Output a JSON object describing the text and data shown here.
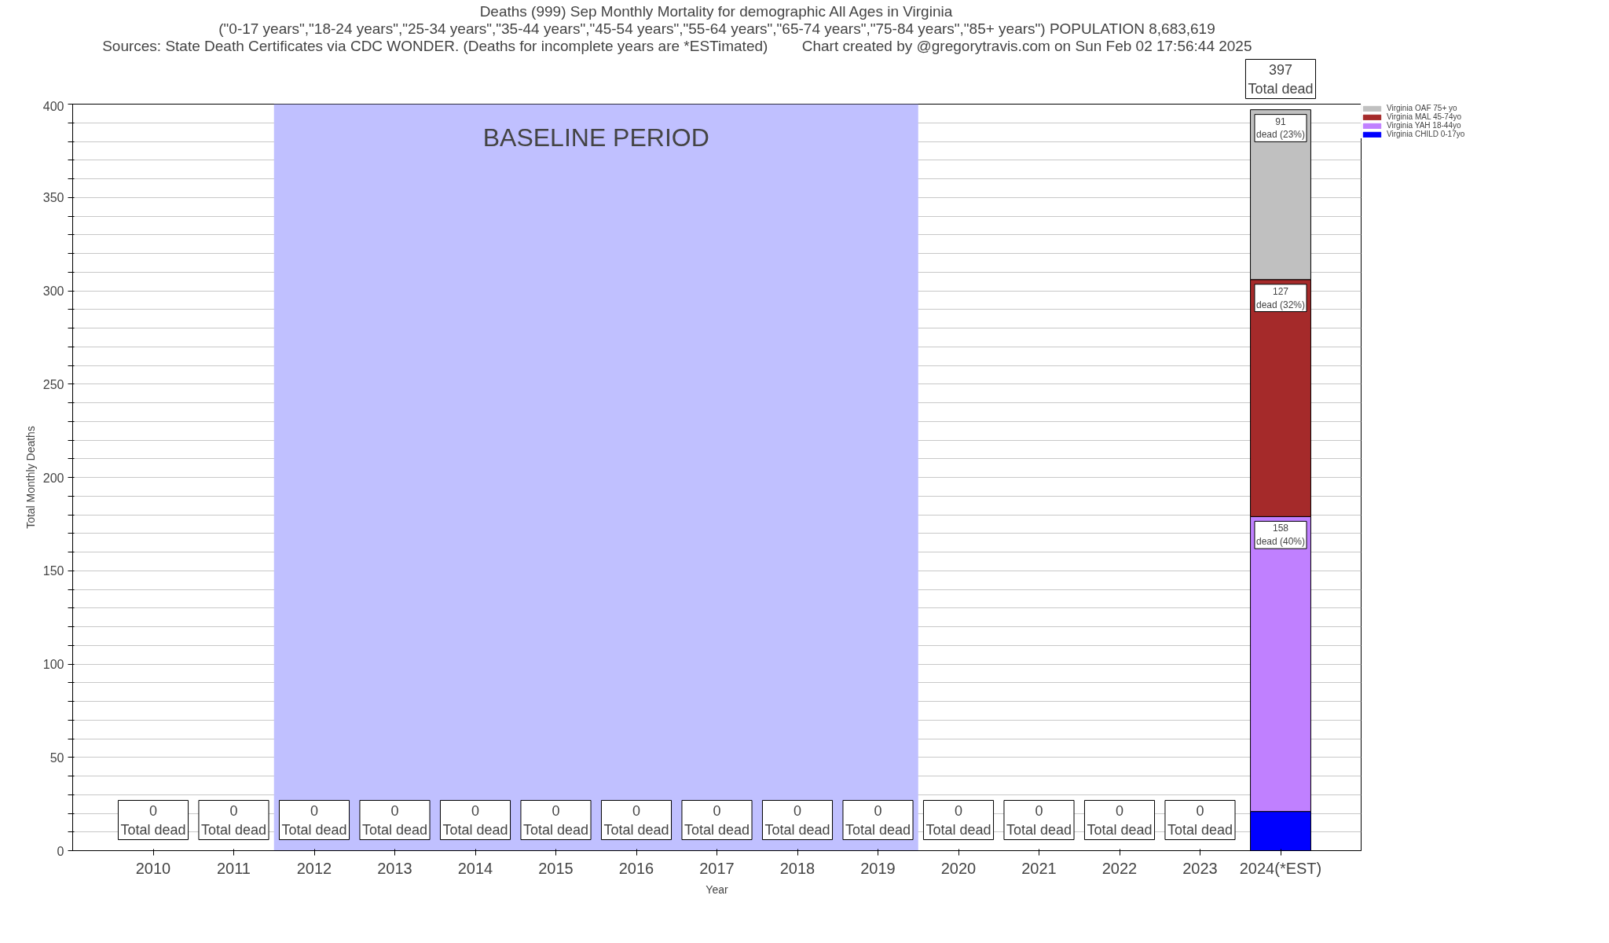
{
  "chart_data": {
    "type": "bar",
    "stacked": true,
    "title": "Deaths (999) Sep Monthly Mortality for demographic All Ages in Virginia",
    "subtitle": "(\"0-17 years\",\"18-24 years\",\"25-34 years\",\"35-44 years\",\"45-54 years\",\"55-64 years\",\"65-74 years\",\"75-84 years\",\"85+ years\") POPULATION 8,683,619",
    "annotations": [
      "Sources: State Death Certificates via CDC WONDER. (Deaths for incomplete years are *ESTimated)",
      "Chart created by @gregorytravis.com on Sun Feb 02 17:56:44 2025"
    ],
    "xlabel": "Year",
    "ylabel": "Total Monthly Deaths",
    "categories": [
      "2010",
      "2011",
      "2012",
      "2013",
      "2014",
      "2015",
      "2016",
      "2017",
      "2018",
      "2019",
      "2020",
      "2021",
      "2022",
      "2023",
      "2024(*EST)"
    ],
    "series": [
      {
        "name": "Virginia CHILD 0-17yo",
        "color": "#0000ff",
        "values": [
          0,
          0,
          0,
          0,
          0,
          0,
          0,
          0,
          0,
          0,
          0,
          0,
          0,
          0,
          21
        ]
      },
      {
        "name": "Virginia YAH 18-44yo",
        "color": "#c080ff",
        "values": [
          0,
          0,
          0,
          0,
          0,
          0,
          0,
          0,
          0,
          0,
          0,
          0,
          0,
          0,
          158
        ],
        "value_labels": [
          null,
          null,
          null,
          null,
          null,
          null,
          null,
          null,
          null,
          null,
          null,
          null,
          null,
          null,
          "158\ndead (40%)"
        ]
      },
      {
        "name": "Virginia MAL 45-74yo",
        "color": "#a52a2a",
        "values": [
          0,
          0,
          0,
          0,
          0,
          0,
          0,
          0,
          0,
          0,
          0,
          0,
          0,
          0,
          127
        ],
        "value_labels": [
          null,
          null,
          null,
          null,
          null,
          null,
          null,
          null,
          null,
          null,
          null,
          null,
          null,
          null,
          "127\ndead (32%)"
        ]
      },
      {
        "name": "Virginia OAF 75+ yo",
        "color": "#c0c0c0",
        "values": [
          0,
          0,
          0,
          0,
          0,
          0,
          0,
          0,
          0,
          0,
          0,
          0,
          0,
          0,
          91
        ],
        "value_labels": [
          null,
          null,
          null,
          null,
          null,
          null,
          null,
          null,
          null,
          null,
          null,
          null,
          null,
          null,
          "91\ndead (23%)"
        ]
      }
    ],
    "totals": [
      "0\nTotal dead",
      "0\nTotal dead",
      "0\nTotal dead",
      "0\nTotal dead",
      "0\nTotal dead",
      "0\nTotal dead",
      "0\nTotal dead",
      "0\nTotal dead",
      "0\nTotal dead",
      "0\nTotal dead",
      "0\nTotal dead",
      "0\nTotal dead",
      "0\nTotal dead",
      "0\nTotal dead",
      "397\nTotal dead"
    ],
    "bands": [
      {
        "axis": "x",
        "from": "2012",
        "to": "2019",
        "label": "BASELINE PERIOD",
        "color": "#c0c0ff"
      }
    ],
    "ylim": [
      0,
      400
    ],
    "yticks": [
      0,
      {
        "value": 10,
        "label": null
      },
      {
        "value": 20,
        "label": null
      },
      {
        "value": 30,
        "label": null
      },
      {
        "value": 40,
        "label": null
      },
      50,
      {
        "value": 60,
        "label": null
      },
      {
        "value": 70,
        "label": null
      },
      {
        "value": 80,
        "label": null
      },
      {
        "value": 90,
        "label": null
      },
      100,
      {
        "value": 110,
        "label": null
      },
      {
        "value": 120,
        "label": null
      },
      {
        "value": 130,
        "label": null
      },
      {
        "value": 140,
        "label": null
      },
      150,
      {
        "value": 160,
        "label": null
      },
      {
        "value": 170,
        "label": null
      },
      {
        "value": 180,
        "label": null
      },
      {
        "value": 190,
        "label": null
      },
      200,
      {
        "value": 210,
        "label": null
      },
      {
        "value": 220,
        "label": null
      },
      {
        "value": 230,
        "label": null
      },
      {
        "value": 240,
        "label": null
      },
      250,
      {
        "value": 260,
        "label": null
      },
      {
        "value": 270,
        "label": null
      },
      {
        "value": 280,
        "label": null
      },
      {
        "value": 290,
        "label": null
      },
      300,
      {
        "value": 310,
        "label": null
      },
      {
        "value": 320,
        "label": null
      },
      {
        "value": 330,
        "label": null
      },
      {
        "value": 340,
        "label": null
      },
      350,
      {
        "value": 360,
        "label": null
      },
      {
        "value": 370,
        "label": null
      },
      {
        "value": 380,
        "label": null
      },
      {
        "value": 390,
        "label": null
      },
      400
    ],
    "grid": "y",
    "legend": "top right"
  }
}
